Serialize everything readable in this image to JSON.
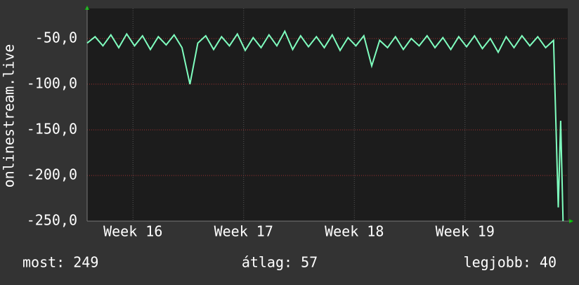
{
  "chart_data": {
    "type": "line",
    "y_label": "onlinestream.live",
    "color": "#7fffbf",
    "x": [
      0,
      0.5,
      1,
      1.5,
      2,
      2.5,
      3,
      3.5,
      4,
      4.5,
      5,
      5.5,
      6,
      6.5,
      7,
      7.5,
      8,
      8.5,
      9,
      9.5,
      10,
      10.5,
      11,
      11.5,
      12,
      12.5,
      13,
      13.5,
      14,
      14.5,
      15,
      15.5,
      16,
      16.5,
      17,
      17.5,
      18,
      18.5,
      19,
      19.5,
      20,
      20.5,
      21,
      21.5,
      22,
      22.5,
      23,
      23.5,
      24,
      24.5,
      25,
      25.5,
      26,
      26.5,
      27,
      27.5,
      28,
      28.5,
      29,
      29.5,
      29.8,
      29.95,
      30.1
    ],
    "values": [
      -55,
      -48,
      -58,
      -46,
      -60,
      -45,
      -58,
      -47,
      -62,
      -48,
      -57,
      -46,
      -60,
      -100,
      -55,
      -47,
      -62,
      -48,
      -58,
      -45,
      -63,
      -49,
      -60,
      -46,
      -58,
      -42,
      -62,
      -47,
      -59,
      -48,
      -60,
      -46,
      -63,
      -49,
      -58,
      -47,
      -80,
      -52,
      -60,
      -48,
      -62,
      -50,
      -58,
      -47,
      -60,
      -49,
      -62,
      -48,
      -59,
      -47,
      -61,
      -50,
      -65,
      -48,
      -60,
      -47,
      -58,
      -48,
      -60,
      -52,
      -235,
      -140,
      -250
    ],
    "xlim": [
      0,
      30.4
    ],
    "xticks": [
      {
        "value": 2.9,
        "label": "Week 16"
      },
      {
        "value": 9.9,
        "label": "Week 17"
      },
      {
        "value": 16.9,
        "label": "Week 18"
      },
      {
        "value": 23.9,
        "label": "Week 19"
      }
    ],
    "ylim": [
      -250,
      -17
    ],
    "yticks": [
      {
        "value": -50,
        "label": "-50,0"
      },
      {
        "value": -100,
        "label": "-100,0"
      },
      {
        "value": -150,
        "label": "-150,0"
      },
      {
        "value": -200,
        "label": "-200,0"
      },
      {
        "value": -250,
        "label": "-250,0"
      }
    ],
    "grid": true,
    "summary": [
      "most: 249",
      "átlag: 57",
      "legjobb: 40"
    ]
  }
}
